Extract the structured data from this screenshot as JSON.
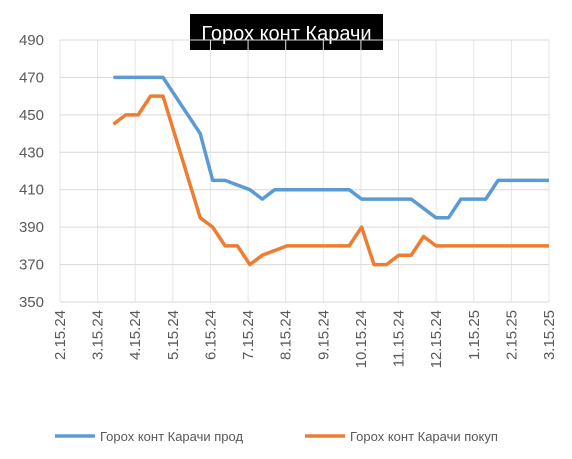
{
  "chart_data": {
    "type": "line",
    "title": "Горох конт Карачи",
    "xlabel": "",
    "ylabel": "",
    "ylim": [
      350,
      490
    ],
    "yticks": [
      350,
      370,
      390,
      410,
      430,
      450,
      470,
      490
    ],
    "xticks": [
      "2.15.24",
      "3.15.24",
      "4.15.24",
      "5.15.24",
      "6.15.24",
      "7.15.24",
      "8.15.24",
      "9.15.24",
      "10.15.24",
      "11.15.24",
      "12.15.24",
      "1.15.25",
      "2.15.25",
      "3.15.25"
    ],
    "grid": true,
    "legend": "bottom",
    "x": [
      "2024-03-29",
      "2024-04-08",
      "2024-04-18",
      "2024-04-28",
      "2024-05-08",
      "2024-05-18",
      "2024-05-28",
      "2024-06-07",
      "2024-06-17",
      "2024-06-27",
      "2024-07-07",
      "2024-07-17",
      "2024-07-27",
      "2024-08-06",
      "2024-08-16",
      "2024-08-26",
      "2024-09-05",
      "2024-09-15",
      "2024-09-25",
      "2024-10-05",
      "2024-10-15",
      "2024-10-25",
      "2024-11-04",
      "2024-11-14",
      "2024-11-24",
      "2024-12-04",
      "2024-12-14",
      "2024-12-24",
      "2025-01-03",
      "2025-01-13",
      "2025-01-23",
      "2025-02-02",
      "2025-02-12",
      "2025-02-22",
      "2025-03-04",
      "2025-03-14",
      "2025-03-15"
    ],
    "series": [
      {
        "name": "Горох конт Карачи прод",
        "color": "#5b9bd5",
        "points": [
          [
            "2024-03-29",
            470
          ],
          [
            "2024-05-08",
            470
          ],
          [
            "2024-06-07",
            440
          ],
          [
            "2024-06-17",
            415
          ],
          [
            "2024-06-27",
            415
          ],
          [
            "2024-07-17",
            410
          ],
          [
            "2024-07-27",
            405
          ],
          [
            "2024-08-06",
            410
          ],
          [
            "2024-09-05",
            410
          ],
          [
            "2024-09-15",
            410
          ],
          [
            "2024-10-05",
            410
          ],
          [
            "2024-10-15",
            405
          ],
          [
            "2024-11-24",
            405
          ],
          [
            "2024-12-14",
            395
          ],
          [
            "2024-12-24",
            395
          ],
          [
            "2025-01-03",
            405
          ],
          [
            "2025-01-23",
            405
          ],
          [
            "2025-02-02",
            415
          ],
          [
            "2025-02-12",
            415
          ],
          [
            "2025-03-15",
            415
          ]
        ]
      },
      {
        "name": "Горох конт Карачи покуп",
        "color": "#ed7d31",
        "points": [
          [
            "2024-03-29",
            445
          ],
          [
            "2024-04-08",
            450
          ],
          [
            "2024-04-18",
            450
          ],
          [
            "2024-04-28",
            460
          ],
          [
            "2024-05-08",
            460
          ],
          [
            "2024-06-07",
            395
          ],
          [
            "2024-06-17",
            390
          ],
          [
            "2024-06-27",
            380
          ],
          [
            "2024-07-07",
            380
          ],
          [
            "2024-07-17",
            370
          ],
          [
            "2024-07-27",
            375
          ],
          [
            "2024-08-16",
            380
          ],
          [
            "2024-09-05",
            380
          ],
          [
            "2024-09-15",
            380
          ],
          [
            "2024-10-05",
            380
          ],
          [
            "2024-10-15",
            390
          ],
          [
            "2024-10-25",
            370
          ],
          [
            "2024-11-04",
            370
          ],
          [
            "2024-11-14",
            375
          ],
          [
            "2024-11-24",
            375
          ],
          [
            "2024-12-04",
            385
          ],
          [
            "2024-12-14",
            380
          ],
          [
            "2025-03-15",
            380
          ]
        ]
      }
    ]
  }
}
